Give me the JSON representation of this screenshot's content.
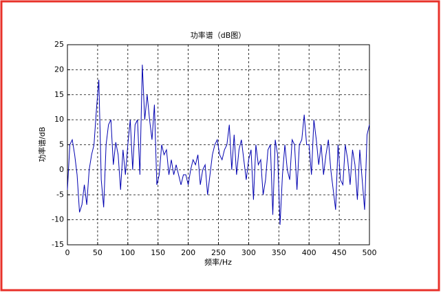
{
  "chart_data": {
    "type": "line",
    "title": "功率谱（dB图）",
    "x_label": "频率/Hz",
    "y_label": "功率谱/dB",
    "x": [
      0,
      4,
      8,
      12,
      16,
      20,
      24,
      28,
      32,
      36,
      40,
      44,
      48,
      52,
      56,
      60,
      64,
      68,
      72,
      76,
      80,
      84,
      88,
      92,
      96,
      100,
      104,
      108,
      112,
      116,
      120,
      124,
      128,
      132,
      136,
      140,
      144,
      148,
      152,
      156,
      160,
      164,
      168,
      172,
      176,
      180,
      184,
      188,
      192,
      196,
      200,
      204,
      208,
      212,
      216,
      220,
      224,
      228,
      232,
      236,
      240,
      244,
      248,
      252,
      256,
      260,
      264,
      268,
      272,
      276,
      280,
      284,
      288,
      292,
      296,
      300,
      304,
      308,
      312,
      316,
      320,
      324,
      328,
      332,
      336,
      340,
      344,
      348,
      352,
      356,
      360,
      364,
      368,
      372,
      376,
      380,
      384,
      388,
      392,
      396,
      400,
      404,
      408,
      412,
      416,
      420,
      424,
      428,
      432,
      436,
      440,
      444,
      448,
      452,
      456,
      460,
      464,
      468,
      472,
      476,
      480,
      484,
      488,
      492,
      496,
      500
    ],
    "series": [
      {
        "color": "#0000b0",
        "values": [
          -4,
          5,
          6,
          3,
          -1,
          -8.5,
          -7,
          -3,
          -7,
          0,
          3,
          5,
          12,
          18,
          -2,
          -7.5,
          5,
          9,
          10,
          1,
          5.5,
          3,
          -4,
          4,
          -1,
          5,
          10,
          0,
          9,
          10,
          -1,
          21,
          10,
          15,
          10,
          6,
          13,
          -3,
          -1,
          5,
          3,
          4,
          -1,
          2,
          -1,
          1,
          -1,
          -3,
          -1,
          -1,
          -3,
          0,
          2,
          1,
          3,
          -3,
          0,
          1,
          -5,
          -1,
          3,
          5,
          6,
          3,
          2,
          4,
          5,
          9,
          0,
          7,
          -1,
          4,
          6,
          2,
          -2,
          2,
          4,
          -6,
          5,
          1,
          2,
          -5,
          -2,
          4,
          5,
          -9,
          6,
          3,
          -11,
          -1,
          5,
          0,
          -2,
          6,
          5,
          -4,
          5,
          6,
          11,
          5,
          5,
          -1,
          10,
          6,
          1,
          5,
          -1,
          3,
          6,
          0,
          -4,
          -8,
          5,
          -2,
          -3,
          5,
          2,
          -3,
          4,
          1,
          -6,
          4,
          -2,
          -8,
          7,
          9
        ]
      }
    ],
    "xlim": [
      0,
      500
    ],
    "xticks": [
      0,
      50,
      100,
      150,
      200,
      250,
      300,
      350,
      400,
      450,
      500
    ],
    "ylim": [
      -15,
      25
    ],
    "yticks": [
      -15,
      -10,
      -5,
      0,
      5,
      10,
      15,
      20,
      25
    ],
    "grid": true
  }
}
